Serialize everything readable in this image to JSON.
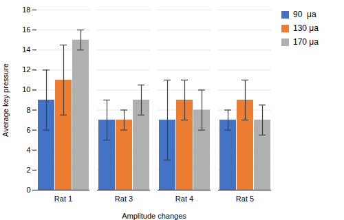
{
  "chart_data": {
    "type": "bar",
    "categories": [
      "Rat 1",
      "Rat 3",
      "Rat 4",
      "Rat 5"
    ],
    "series": [
      {
        "name": "90  μa",
        "color": "#4472C4",
        "values": [
          9,
          7,
          7,
          7
        ],
        "errors": [
          3,
          2,
          4,
          1.0
        ]
      },
      {
        "name": "130 μa",
        "color": "#ED7D31",
        "values": [
          11,
          7,
          9,
          9
        ],
        "errors": [
          3.5,
          1.0,
          2,
          2
        ]
      },
      {
        "name": "170 μa",
        "color": "#B0B0B0",
        "values": [
          15,
          9,
          8,
          7
        ],
        "errors": [
          1.0,
          1.5,
          2,
          1.5
        ]
      }
    ],
    "xlabel": "Amplitude changes",
    "ylabel": "Average key pressure",
    "ylim": [
      0,
      18
    ],
    "yticks": [
      0,
      2,
      4,
      6,
      8,
      10,
      12,
      14,
      16,
      18
    ],
    "grid": true,
    "legend": "upper right"
  }
}
